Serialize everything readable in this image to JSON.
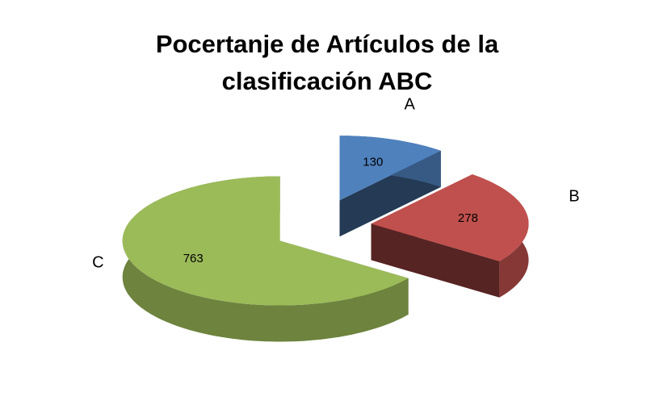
{
  "chart_data": {
    "type": "pie3d",
    "title": "Pocertanje de Artículos de la clasificación ABC",
    "categories": [
      "A",
      "B",
      "C"
    ],
    "values": [
      130,
      278,
      763
    ],
    "colors": [
      "#4f81bd",
      "#c0504d",
      "#9bbb59"
    ]
  }
}
